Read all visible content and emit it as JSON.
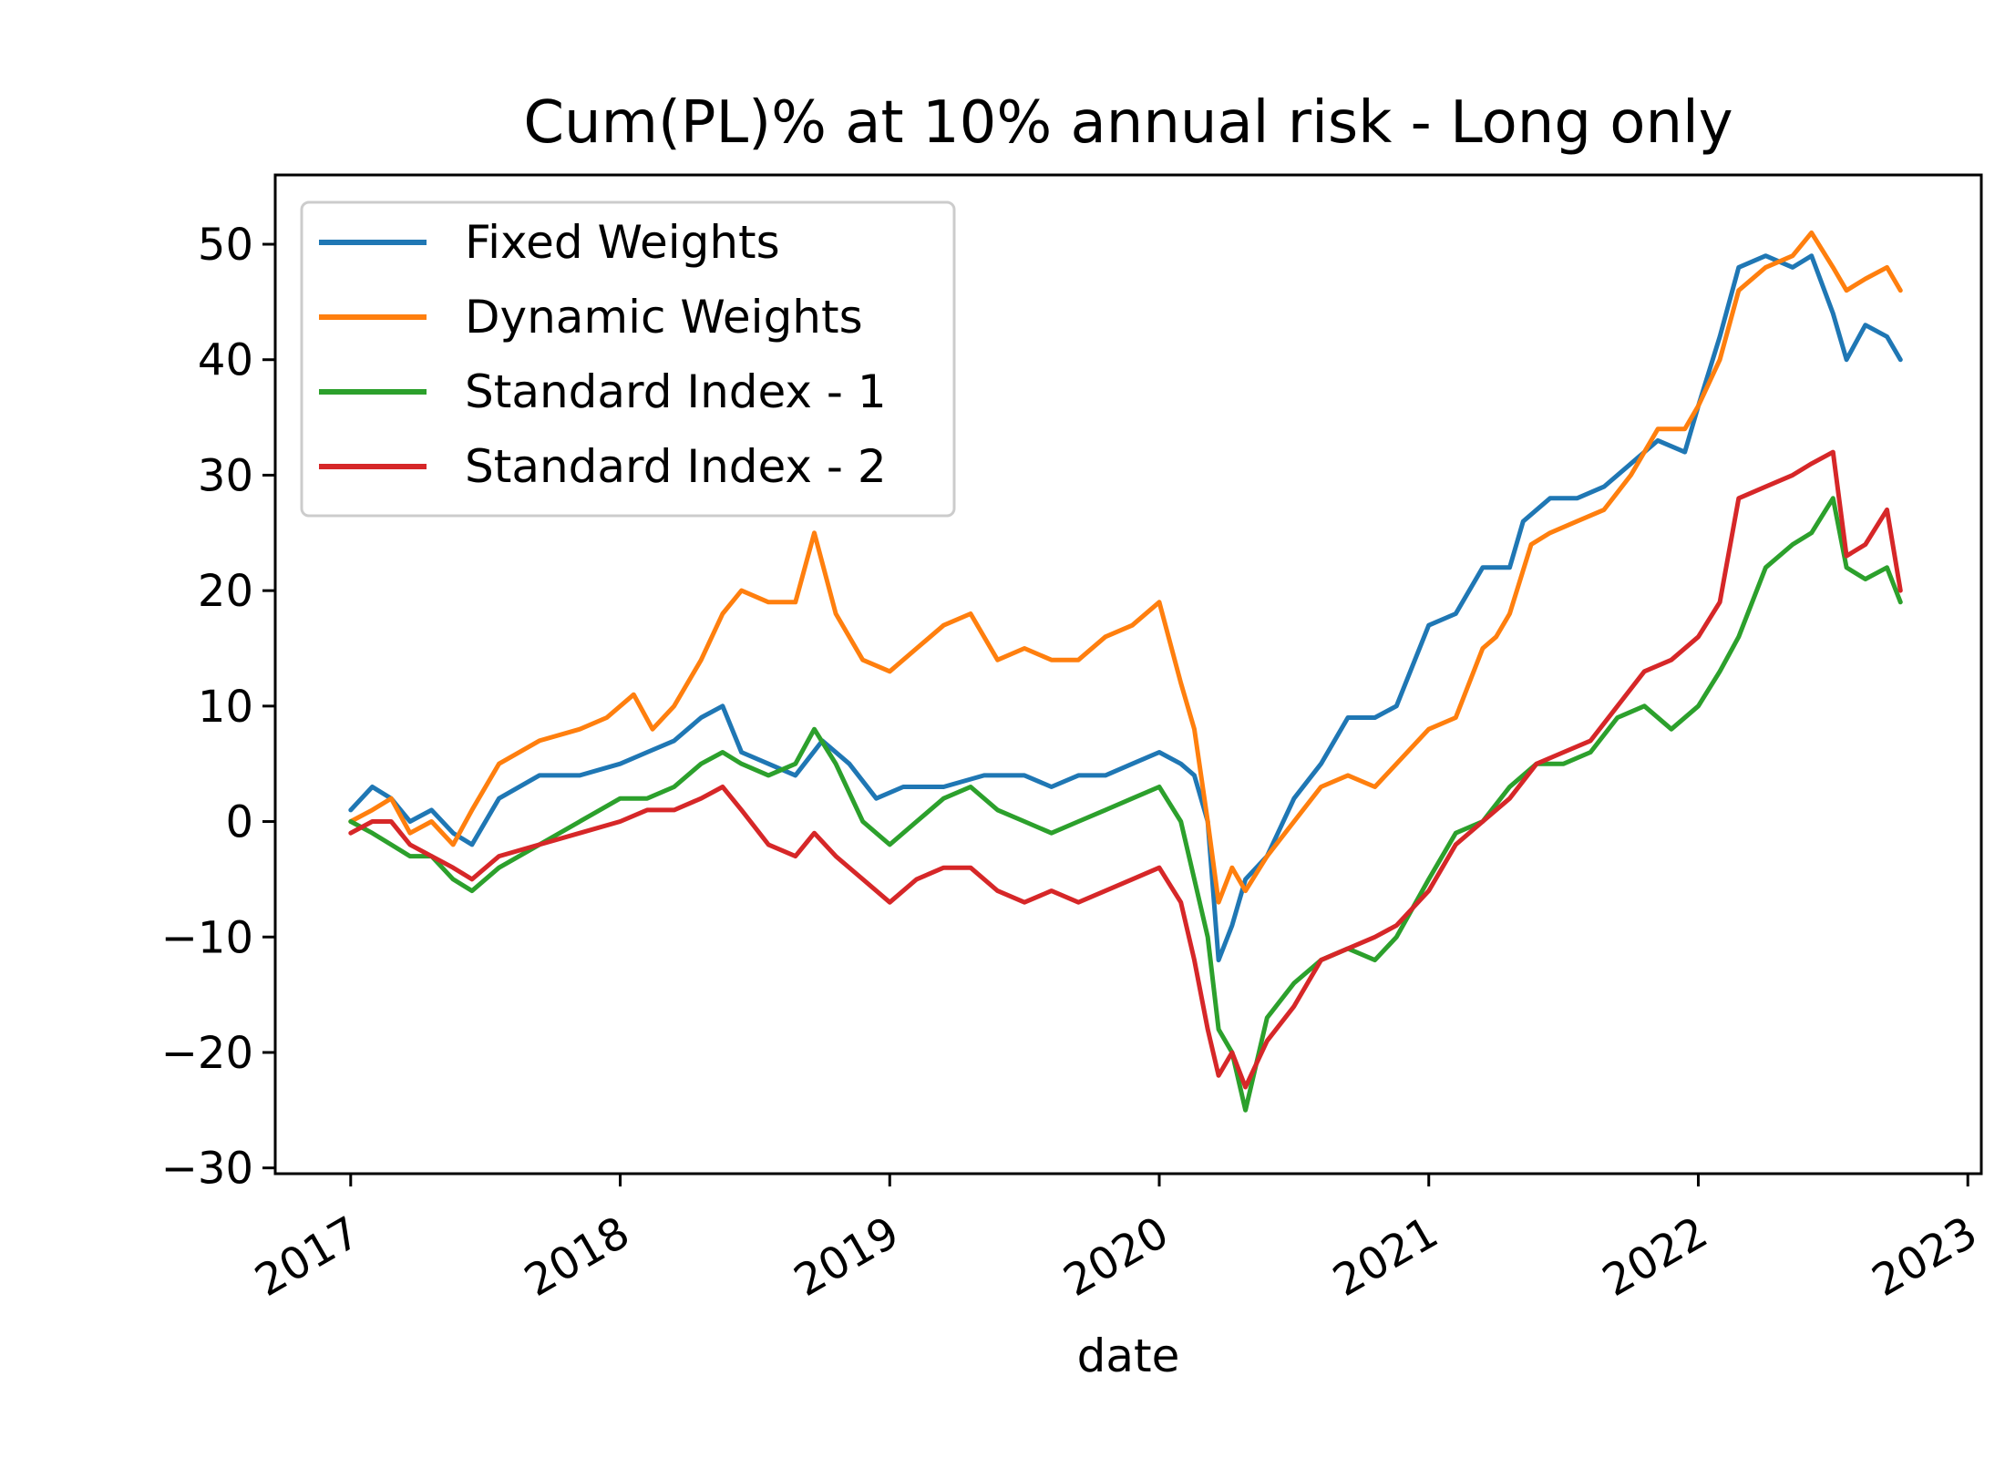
{
  "chart_data": {
    "type": "line",
    "title": "Cum(PL)% at 10% annual risk - Long only",
    "xlabel": "date",
    "ylabel": "",
    "xlim": [
      2016.72,
      2023.05
    ],
    "ylim": [
      -30.5,
      56
    ],
    "x_ticks": [
      {
        "value": 2017,
        "label": "2017"
      },
      {
        "value": 2018,
        "label": "2018"
      },
      {
        "value": 2019,
        "label": "2019"
      },
      {
        "value": 2020,
        "label": "2020"
      },
      {
        "value": 2021,
        "label": "2021"
      },
      {
        "value": 2022,
        "label": "2022"
      },
      {
        "value": 2023,
        "label": "2023"
      }
    ],
    "y_ticks": [
      {
        "value": 50,
        "label": "50"
      },
      {
        "value": 40,
        "label": "40"
      },
      {
        "value": 30,
        "label": "30"
      },
      {
        "value": 20,
        "label": "20"
      },
      {
        "value": 10,
        "label": "10"
      },
      {
        "value": 0,
        "label": "0"
      },
      {
        "value": -10,
        "label": "−10"
      },
      {
        "value": -20,
        "label": "−20"
      },
      {
        "value": -30,
        "label": "−30"
      }
    ],
    "grid": false,
    "legend_position": "upper-left",
    "series": [
      {
        "name": "Fixed Weights",
        "color": "#1f77b4",
        "x": [
          2017.0,
          2017.08,
          2017.15,
          2017.22,
          2017.3,
          2017.38,
          2017.45,
          2017.55,
          2017.7,
          2017.85,
          2018.0,
          2018.1,
          2018.2,
          2018.3,
          2018.38,
          2018.45,
          2018.55,
          2018.65,
          2018.75,
          2018.85,
          2018.95,
          2019.05,
          2019.2,
          2019.35,
          2019.5,
          2019.6,
          2019.7,
          2019.8,
          2019.9,
          2020.0,
          2020.08,
          2020.13,
          2020.18,
          2020.22,
          2020.27,
          2020.32,
          2020.4,
          2020.5,
          2020.6,
          2020.7,
          2020.8,
          2020.88,
          2021.0,
          2021.1,
          2021.2,
          2021.3,
          2021.35,
          2021.45,
          2021.55,
          2021.65,
          2021.75,
          2021.85,
          2021.95,
          2022.0,
          2022.08,
          2022.15,
          2022.25,
          2022.35,
          2022.42,
          2022.5,
          2022.55,
          2022.62,
          2022.7,
          2022.75
        ],
        "y": [
          1,
          3,
          2,
          0,
          1,
          -1,
          -2,
          2,
          4,
          4,
          5,
          6,
          7,
          9,
          10,
          6,
          5,
          4,
          7,
          5,
          2,
          3,
          3,
          4,
          4,
          3,
          4,
          4,
          5,
          6,
          5,
          4,
          0,
          -12,
          -9,
          -5,
          -3,
          2,
          5,
          9,
          9,
          10,
          17,
          18,
          22,
          22,
          26,
          28,
          28,
          29,
          31,
          33,
          32,
          36,
          42,
          48,
          49,
          48,
          49,
          44,
          40,
          43,
          42,
          40
        ]
      },
      {
        "name": "Dynamic Weights",
        "color": "#ff7f0e",
        "x": [
          2017.0,
          2017.08,
          2017.15,
          2017.22,
          2017.3,
          2017.38,
          2017.45,
          2017.55,
          2017.7,
          2017.85,
          2017.95,
          2018.05,
          2018.12,
          2018.2,
          2018.3,
          2018.38,
          2018.45,
          2018.55,
          2018.65,
          2018.72,
          2018.8,
          2018.9,
          2019.0,
          2019.1,
          2019.2,
          2019.3,
          2019.4,
          2019.5,
          2019.6,
          2019.7,
          2019.8,
          2019.9,
          2020.0,
          2020.08,
          2020.13,
          2020.18,
          2020.22,
          2020.27,
          2020.32,
          2020.4,
          2020.5,
          2020.6,
          2020.7,
          2020.8,
          2020.88,
          2021.0,
          2021.1,
          2021.2,
          2021.25,
          2021.3,
          2021.38,
          2021.45,
          2021.55,
          2021.65,
          2021.75,
          2021.85,
          2021.95,
          2022.0,
          2022.08,
          2022.15,
          2022.25,
          2022.35,
          2022.42,
          2022.5,
          2022.55,
          2022.62,
          2022.7,
          2022.75
        ],
        "y": [
          0,
          1,
          2,
          -1,
          0,
          -2,
          1,
          5,
          7,
          8,
          9,
          11,
          8,
          10,
          14,
          18,
          20,
          19,
          19,
          25,
          18,
          14,
          13,
          15,
          17,
          18,
          14,
          15,
          14,
          14,
          16,
          17,
          19,
          12,
          8,
          0,
          -7,
          -4,
          -6,
          -3,
          0,
          3,
          4,
          3,
          5,
          8,
          9,
          15,
          16,
          18,
          24,
          25,
          26,
          27,
          30,
          34,
          34,
          36,
          40,
          46,
          48,
          49,
          51,
          48,
          46,
          47,
          48,
          46
        ]
      },
      {
        "name": "Standard Index - 1",
        "color": "#2ca02c",
        "x": [
          2017.0,
          2017.08,
          2017.15,
          2017.22,
          2017.3,
          2017.38,
          2017.45,
          2017.55,
          2017.7,
          2017.85,
          2018.0,
          2018.1,
          2018.2,
          2018.3,
          2018.38,
          2018.45,
          2018.55,
          2018.65,
          2018.72,
          2018.8,
          2018.9,
          2019.0,
          2019.1,
          2019.2,
          2019.3,
          2019.4,
          2019.5,
          2019.6,
          2019.7,
          2019.8,
          2019.9,
          2020.0,
          2020.08,
          2020.13,
          2020.18,
          2020.22,
          2020.27,
          2020.32,
          2020.4,
          2020.5,
          2020.6,
          2020.7,
          2020.8,
          2020.88,
          2021.0,
          2021.1,
          2021.2,
          2021.3,
          2021.4,
          2021.5,
          2021.6,
          2021.7,
          2021.8,
          2021.9,
          2022.0,
          2022.08,
          2022.15,
          2022.25,
          2022.35,
          2022.42,
          2022.5,
          2022.55,
          2022.62,
          2022.7,
          2022.75
        ],
        "y": [
          0,
          -1,
          -2,
          -3,
          -3,
          -5,
          -6,
          -4,
          -2,
          0,
          2,
          2,
          3,
          5,
          6,
          5,
          4,
          5,
          8,
          5,
          0,
          -2,
          0,
          2,
          3,
          1,
          0,
          -1,
          0,
          1,
          2,
          3,
          0,
          -5,
          -10,
          -18,
          -20,
          -25,
          -17,
          -14,
          -12,
          -11,
          -12,
          -10,
          -5,
          -1,
          0,
          3,
          5,
          5,
          6,
          9,
          10,
          8,
          10,
          13,
          16,
          22,
          24,
          25,
          28,
          22,
          21,
          22,
          19
        ]
      },
      {
        "name": "Standard Index - 2",
        "color": "#d62728",
        "x": [
          2017.0,
          2017.08,
          2017.15,
          2017.22,
          2017.3,
          2017.38,
          2017.45,
          2017.55,
          2017.7,
          2017.85,
          2018.0,
          2018.1,
          2018.2,
          2018.3,
          2018.38,
          2018.45,
          2018.55,
          2018.65,
          2018.72,
          2018.8,
          2018.9,
          2019.0,
          2019.1,
          2019.2,
          2019.3,
          2019.4,
          2019.5,
          2019.6,
          2019.7,
          2019.8,
          2019.9,
          2020.0,
          2020.08,
          2020.13,
          2020.18,
          2020.22,
          2020.27,
          2020.32,
          2020.4,
          2020.5,
          2020.6,
          2020.7,
          2020.8,
          2020.88,
          2021.0,
          2021.1,
          2021.2,
          2021.3,
          2021.4,
          2021.5,
          2021.6,
          2021.7,
          2021.8,
          2021.9,
          2022.0,
          2022.08,
          2022.15,
          2022.25,
          2022.35,
          2022.42,
          2022.5,
          2022.55,
          2022.62,
          2022.7,
          2022.75
        ],
        "y": [
          -1,
          0,
          0,
          -2,
          -3,
          -4,
          -5,
          -3,
          -2,
          -1,
          0,
          1,
          1,
          2,
          3,
          1,
          -2,
          -3,
          -1,
          -3,
          -5,
          -7,
          -5,
          -4,
          -4,
          -6,
          -7,
          -6,
          -7,
          -6,
          -5,
          -4,
          -7,
          -12,
          -18,
          -22,
          -20,
          -23,
          -19,
          -16,
          -12,
          -11,
          -10,
          -9,
          -6,
          -2,
          0,
          2,
          5,
          6,
          7,
          10,
          13,
          14,
          16,
          19,
          28,
          29,
          30,
          31,
          32,
          23,
          24,
          27,
          20
        ]
      }
    ]
  }
}
